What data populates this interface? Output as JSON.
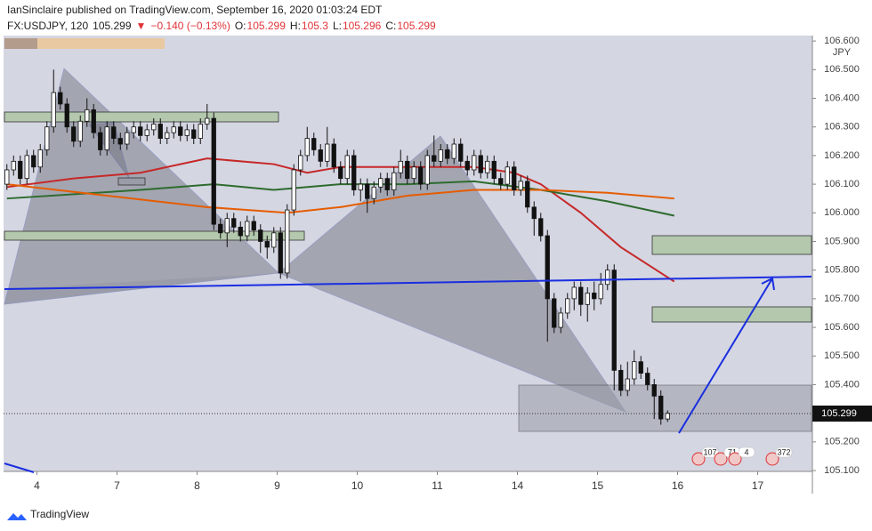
{
  "header": {
    "publisher": "IanSinclaire published on TradingView.com, September 16, 2020 01:03:24 EDT",
    "symbol": "FX:USDJPY, 120",
    "last": 105.299,
    "arrow": "▼",
    "change": "−0.140 (−0.13%)",
    "ohlc": [
      {
        "label": "O:",
        "value": 105.299
      },
      {
        "label": "H:",
        "value": 105.3
      },
      {
        "label": "L:",
        "value": 105.296
      },
      {
        "label": "C:",
        "value": 105.299
      }
    ]
  },
  "footer": {
    "brand": "TradingView"
  },
  "badges": [
    "107",
    "71",
    "4",
    "372"
  ],
  "chart_data": {
    "type": "candlestick",
    "y_unit": "JPY",
    "last_price": 105.299,
    "up_color": "#ffffff",
    "down_color": "#111111",
    "xlim": [
      -0.5,
      120.7
    ],
    "ylim": [
      105.097,
      106.619
    ],
    "xticks": [
      {
        "value": 4.5,
        "label": "4"
      },
      {
        "value": 16.5,
        "label": "7"
      },
      {
        "value": 28.5,
        "label": "8"
      },
      {
        "value": 40.5,
        "label": "9"
      },
      {
        "value": 52.5,
        "label": "10"
      },
      {
        "value": 64.5,
        "label": "11"
      },
      {
        "value": 76.5,
        "label": "14"
      },
      {
        "value": 88.5,
        "label": "15"
      },
      {
        "value": 100.5,
        "label": "16"
      },
      {
        "value": 112.5,
        "label": "17"
      }
    ],
    "yticks": [
      {
        "value": 106.6,
        "label": "106.600"
      },
      {
        "value": 106.5,
        "label": "106.500"
      },
      {
        "value": 106.4,
        "label": "106.400"
      },
      {
        "value": 106.3,
        "label": "106.300"
      },
      {
        "value": 106.2,
        "label": "106.200"
      },
      {
        "value": 106.1,
        "label": "106.100"
      },
      {
        "value": 106.0,
        "label": "106.000"
      },
      {
        "value": 105.9,
        "label": "105.900"
      },
      {
        "value": 105.8,
        "label": "105.800"
      },
      {
        "value": 105.7,
        "label": "105.700"
      },
      {
        "value": 105.6,
        "label": "105.600"
      },
      {
        "value": 105.5,
        "label": "105.500"
      },
      {
        "value": 105.4,
        "label": "105.400"
      },
      {
        "value": 105.2,
        "label": "105.200"
      },
      {
        "value": 105.1,
        "label": "105.100"
      }
    ],
    "open": [
      106.1,
      106.15,
      106.18,
      106.12,
      106.2,
      106.16,
      106.22,
      106.3,
      106.42,
      106.38,
      106.3,
      106.25,
      106.32,
      106.36,
      106.28,
      106.22,
      106.3,
      106.26,
      106.24,
      106.28,
      106.3,
      106.27,
      106.29,
      106.31,
      106.26,
      106.28,
      106.3,
      106.27,
      106.29,
      106.26,
      106.31,
      106.33,
      105.96,
      105.93,
      105.98,
      105.95,
      105.92,
      105.97,
      105.94,
      105.9,
      105.88,
      105.93,
      105.79,
      106.01,
      106.15,
      106.2,
      106.26,
      106.22,
      106.18,
      106.24,
      106.16,
      106.12,
      106.2,
      106.08,
      106.1,
      106.05,
      106.09,
      106.12,
      106.08,
      106.14,
      106.18,
      106.12,
      106.16,
      106.1,
      106.2,
      106.18,
      106.22,
      106.19,
      106.24,
      106.18,
      106.15,
      106.2,
      106.14,
      106.18,
      106.12,
      106.1,
      106.16,
      106.08,
      106.11,
      106.02,
      105.98,
      105.92,
      105.7,
      105.6,
      105.65,
      105.7,
      105.74,
      105.68,
      105.72,
      105.7,
      105.75,
      105.8,
      105.45,
      105.38,
      105.42,
      105.48,
      105.44,
      105.4,
      105.36,
      105.28
    ],
    "high": [
      106.17,
      106.2,
      106.2,
      106.22,
      106.22,
      106.24,
      106.32,
      106.5,
      106.44,
      106.4,
      106.32,
      106.34,
      106.4,
      106.38,
      106.3,
      106.32,
      106.32,
      106.28,
      106.3,
      106.32,
      106.32,
      106.31,
      106.33,
      106.33,
      106.3,
      106.32,
      106.32,
      106.31,
      106.31,
      106.33,
      106.38,
      106.35,
      105.98,
      106.0,
      106.0,
      105.97,
      105.99,
      105.99,
      105.96,
      105.92,
      105.95,
      105.95,
      106.03,
      106.17,
      106.22,
      106.3,
      106.28,
      106.24,
      106.3,
      106.26,
      106.18,
      106.22,
      106.22,
      106.12,
      106.12,
      106.11,
      106.14,
      106.14,
      106.16,
      106.22,
      106.2,
      106.18,
      106.18,
      106.22,
      106.27,
      106.24,
      106.24,
      106.26,
      106.26,
      106.2,
      106.22,
      106.22,
      106.2,
      106.2,
      106.14,
      106.18,
      106.18,
      106.13,
      106.13,
      106.04,
      106.0,
      105.94,
      105.72,
      105.67,
      105.72,
      105.76,
      105.76,
      105.74,
      105.76,
      105.79,
      105.82,
      105.82,
      105.47,
      105.48,
      105.52,
      105.5,
      105.46,
      105.42,
      105.38,
      105.31
    ],
    "low": [
      106.08,
      106.13,
      106.1,
      106.1,
      106.14,
      106.14,
      106.2,
      106.28,
      106.36,
      106.28,
      106.23,
      106.23,
      106.3,
      106.26,
      106.2,
      106.2,
      106.24,
      106.22,
      106.22,
      106.26,
      106.25,
      106.25,
      106.27,
      106.24,
      106.24,
      106.26,
      106.25,
      106.25,
      106.24,
      106.24,
      106.29,
      105.94,
      105.91,
      105.88,
      105.93,
      105.9,
      105.9,
      105.92,
      105.86,
      105.84,
      105.86,
      105.77,
      105.77,
      105.99,
      106.13,
      106.18,
      106.2,
      106.16,
      106.16,
      106.14,
      106.1,
      106.1,
      106.06,
      106.04,
      106.0,
      106.03,
      106.07,
      106.06,
      106.06,
      106.12,
      106.1,
      106.1,
      106.08,
      106.08,
      106.16,
      106.16,
      106.17,
      106.17,
      106.16,
      106.13,
      106.13,
      106.12,
      106.12,
      106.1,
      106.08,
      106.08,
      106.06,
      106.06,
      106.0,
      105.92,
      105.9,
      105.55,
      105.58,
      105.58,
      105.63,
      105.66,
      105.64,
      105.62,
      105.66,
      105.68,
      105.73,
      105.38,
      105.36,
      105.36,
      105.4,
      105.42,
      105.38,
      105.28,
      105.26,
      105.27
    ],
    "close": [
      106.15,
      106.18,
      106.12,
      106.2,
      106.16,
      106.22,
      106.3,
      106.42,
      106.38,
      106.3,
      106.25,
      106.32,
      106.36,
      106.28,
      106.22,
      106.3,
      106.26,
      106.24,
      106.28,
      106.3,
      106.27,
      106.29,
      106.31,
      106.26,
      106.28,
      106.3,
      106.27,
      106.29,
      106.26,
      106.31,
      106.33,
      105.96,
      105.93,
      105.98,
      105.95,
      105.92,
      105.97,
      105.94,
      105.9,
      105.88,
      105.93,
      105.79,
      106.01,
      106.15,
      106.2,
      106.26,
      106.22,
      106.18,
      106.24,
      106.16,
      106.12,
      106.2,
      106.08,
      106.1,
      106.05,
      106.09,
      106.12,
      106.08,
      106.14,
      106.18,
      106.12,
      106.16,
      106.1,
      106.2,
      106.18,
      106.22,
      106.19,
      106.24,
      106.18,
      106.15,
      106.2,
      106.14,
      106.18,
      106.12,
      106.1,
      106.16,
      106.08,
      106.11,
      106.02,
      105.98,
      105.92,
      105.7,
      105.6,
      105.65,
      105.7,
      105.74,
      105.68,
      105.72,
      105.7,
      105.75,
      105.8,
      105.45,
      105.38,
      105.42,
      105.48,
      105.44,
      105.4,
      105.36,
      105.28,
      105.3
    ],
    "lines": [
      {
        "color": "#c62828",
        "x": [
          0,
          10,
          20,
          30,
          40,
          45,
          50,
          60,
          70,
          76,
          80,
          86,
          92,
          100
        ],
        "values": [
          106.09,
          106.12,
          106.14,
          106.19,
          106.17,
          106.14,
          106.16,
          106.16,
          106.16,
          106.14,
          106.1,
          106.0,
          105.88,
          105.76
        ]
      },
      {
        "color": "#2e6b2e",
        "x": [
          0,
          20,
          31,
          40,
          50,
          60,
          70,
          80,
          90,
          100
        ],
        "values": [
          106.05,
          106.08,
          106.1,
          106.08,
          106.1,
          106.1,
          106.11,
          106.08,
          106.04,
          105.99
        ]
      },
      {
        "color": "#e65c00",
        "x": [
          0,
          15,
          30,
          42,
          50,
          60,
          70,
          80,
          90,
          100
        ],
        "values": [
          106.1,
          106.06,
          106.02,
          106.0,
          106.02,
          106.06,
          106.08,
          106.08,
          106.07,
          106.05
        ]
      }
    ]
  }
}
